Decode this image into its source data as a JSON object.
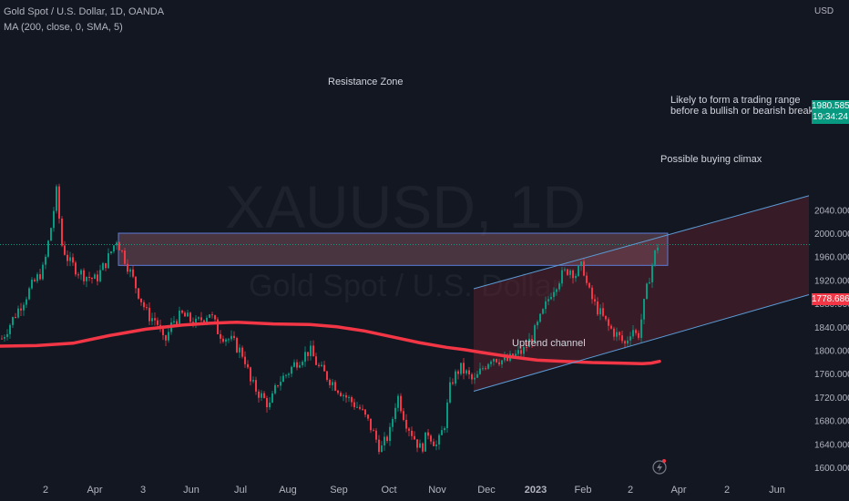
{
  "header": {
    "title": "Gold Spot / U.S. Dollar, 1D, OANDA",
    "indicator": "MA (200, close, 0, SMA, 5)"
  },
  "watermark": {
    "symbol": "XAUUSD, 1D",
    "name": "Gold Spot / U.S. Dollar"
  },
  "colors": {
    "background": "#131722",
    "up": "#089981",
    "down": "#f23645",
    "ma": "#f23645",
    "channel": "#5b9bd5",
    "zone_fill": "#8a5a66"
  },
  "chart_data": {
    "type": "candlestick",
    "symbol": "XAUUSD",
    "timeframe": "1D",
    "y_unit": "USD",
    "ylim": [
      1590,
      2090
    ],
    "y_ticks": [
      1600,
      1640,
      1680,
      1720,
      1760,
      1800,
      1840,
      1880,
      1920,
      1960,
      2000,
      2040
    ],
    "x_ticks": [
      "2",
      "Apr",
      "3",
      "Jun",
      "Jul",
      "Aug",
      "Sep",
      "Oct",
      "Nov",
      "Dec",
      "2023",
      "Feb",
      "2",
      "Apr",
      "2",
      "Jun"
    ],
    "last_price": "1980.585",
    "countdown": "19:34:24",
    "ma_value": "1778.686",
    "price_path": [
      {
        "x": 2,
        "y": 1820
      },
      {
        "x": 20,
        "y": 1870
      },
      {
        "x": 35,
        "y": 1910
      },
      {
        "x": 48,
        "y": 1940
      },
      {
        "x": 56,
        "y": 2010
      },
      {
        "x": 62,
        "y": 2070
      },
      {
        "x": 68,
        "y": 1980
      },
      {
        "x": 76,
        "y": 1950
      },
      {
        "x": 90,
        "y": 1930
      },
      {
        "x": 105,
        "y": 1920
      },
      {
        "x": 118,
        "y": 1955
      },
      {
        "x": 128,
        "y": 1990
      },
      {
        "x": 140,
        "y": 1945
      },
      {
        "x": 150,
        "y": 1905
      },
      {
        "x": 162,
        "y": 1860
      },
      {
        "x": 172,
        "y": 1850
      },
      {
        "x": 180,
        "y": 1810
      },
      {
        "x": 190,
        "y": 1850
      },
      {
        "x": 200,
        "y": 1860
      },
      {
        "x": 215,
        "y": 1845
      },
      {
        "x": 230,
        "y": 1865
      },
      {
        "x": 240,
        "y": 1830
      },
      {
        "x": 255,
        "y": 1815
      },
      {
        "x": 268,
        "y": 1790
      },
      {
        "x": 275,
        "y": 1745
      },
      {
        "x": 285,
        "y": 1725
      },
      {
        "x": 296,
        "y": 1705
      },
      {
        "x": 305,
        "y": 1745
      },
      {
        "x": 315,
        "y": 1760
      },
      {
        "x": 325,
        "y": 1780
      },
      {
        "x": 340,
        "y": 1800
      },
      {
        "x": 350,
        "y": 1770
      },
      {
        "x": 365,
        "y": 1745
      },
      {
        "x": 380,
        "y": 1720
      },
      {
        "x": 395,
        "y": 1700
      },
      {
        "x": 405,
        "y": 1675
      },
      {
        "x": 418,
        "y": 1630
      },
      {
        "x": 428,
        "y": 1660
      },
      {
        "x": 436,
        "y": 1725
      },
      {
        "x": 445,
        "y": 1680
      },
      {
        "x": 455,
        "y": 1650
      },
      {
        "x": 462,
        "y": 1630
      },
      {
        "x": 470,
        "y": 1660
      },
      {
        "x": 480,
        "y": 1635
      },
      {
        "x": 488,
        "y": 1675
      },
      {
        "x": 495,
        "y": 1745
      },
      {
        "x": 505,
        "y": 1770
      },
      {
        "x": 512,
        "y": 1760
      },
      {
        "x": 520,
        "y": 1745
      },
      {
        "x": 530,
        "y": 1770
      },
      {
        "x": 540,
        "y": 1790
      },
      {
        "x": 555,
        "y": 1780
      },
      {
        "x": 565,
        "y": 1790
      },
      {
        "x": 575,
        "y": 1800
      },
      {
        "x": 585,
        "y": 1825
      },
      {
        "x": 595,
        "y": 1860
      },
      {
        "x": 605,
        "y": 1900
      },
      {
        "x": 615,
        "y": 1925
      },
      {
        "x": 625,
        "y": 1940
      },
      {
        "x": 632,
        "y": 1930
      },
      {
        "x": 640,
        "y": 1945
      },
      {
        "x": 645,
        "y": 1905
      },
      {
        "x": 652,
        "y": 1880
      },
      {
        "x": 660,
        "y": 1860
      },
      {
        "x": 668,
        "y": 1840
      },
      {
        "x": 678,
        "y": 1825
      },
      {
        "x": 686,
        "y": 1810
      },
      {
        "x": 694,
        "y": 1840
      },
      {
        "x": 700,
        "y": 1820
      },
      {
        "x": 706,
        "y": 1870
      },
      {
        "x": 712,
        "y": 1920
      },
      {
        "x": 718,
        "y": 1960
      },
      {
        "x": 722,
        "y": 1980
      }
    ],
    "ma_path": [
      {
        "x": 0,
        "y": 1807
      },
      {
        "x": 40,
        "y": 1808
      },
      {
        "x": 80,
        "y": 1812
      },
      {
        "x": 120,
        "y": 1825
      },
      {
        "x": 160,
        "y": 1836
      },
      {
        "x": 200,
        "y": 1843
      },
      {
        "x": 230,
        "y": 1846
      },
      {
        "x": 260,
        "y": 1848
      },
      {
        "x": 300,
        "y": 1845
      },
      {
        "x": 340,
        "y": 1844
      },
      {
        "x": 370,
        "y": 1840
      },
      {
        "x": 400,
        "y": 1833
      },
      {
        "x": 430,
        "y": 1823
      },
      {
        "x": 460,
        "y": 1813
      },
      {
        "x": 490,
        "y": 1805
      },
      {
        "x": 510,
        "y": 1801
      },
      {
        "x": 530,
        "y": 1796
      },
      {
        "x": 560,
        "y": 1789
      },
      {
        "x": 590,
        "y": 1783
      },
      {
        "x": 620,
        "y": 1781
      },
      {
        "x": 650,
        "y": 1779
      },
      {
        "x": 680,
        "y": 1778
      },
      {
        "x": 705,
        "y": 1777
      },
      {
        "x": 715,
        "y": 1778
      },
      {
        "x": 724,
        "y": 1781
      }
    ],
    "resistance_zone": {
      "label": "Resistance Zone",
      "top": 2000,
      "bottom": 1945,
      "x0": 130,
      "x1": 733
    },
    "channel": {
      "label": "Uptrend channel",
      "upper": {
        "x0": 520,
        "y0": 1905,
        "x1": 888,
        "y1": 2064
      },
      "lower": {
        "x0": 520,
        "y0": 1730,
        "x1": 888,
        "y1": 1895
      }
    },
    "annotations": [
      "Likely to form a trading range",
      "before a bullish or bearish breakouts",
      "Possible buying climax"
    ]
  }
}
